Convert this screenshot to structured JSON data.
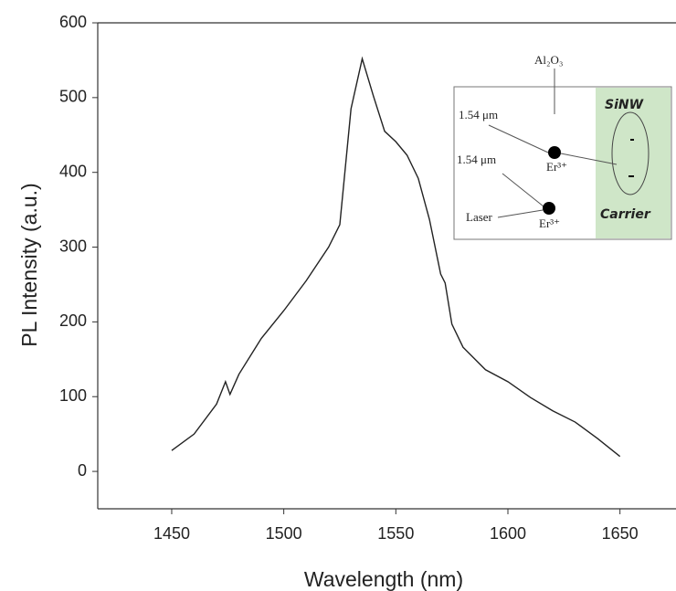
{
  "chart_data": {
    "type": "line",
    "x_label": "Wavelength (nm)",
    "y_label": "PL Intensity (a.u.)",
    "x": [
      1450,
      1460,
      1470,
      1474,
      1476,
      1480,
      1490,
      1500,
      1510,
      1520,
      1525,
      1530,
      1535,
      1540,
      1545,
      1550,
      1555,
      1560,
      1565,
      1570,
      1572,
      1575,
      1580,
      1590,
      1600,
      1610,
      1620,
      1630,
      1640,
      1650
    ],
    "series": [
      {
        "color": "#222222",
        "values": [
          28,
          50,
          90,
          120,
          103,
          130,
          178,
          215,
          255,
          300,
          330,
          485,
          552,
          502,
          455,
          441,
          423,
          392,
          337,
          264,
          252,
          197,
          166,
          136,
          120,
          99,
          81,
          66,
          44,
          20
        ]
      }
    ],
    "xlim": [
      1417,
      1675
    ],
    "xticks": [
      1450,
      1500,
      1550,
      1600,
      1650
    ],
    "ylim": [
      -50,
      600
    ],
    "yticks": [
      0,
      100,
      200,
      300,
      400,
      500,
      600
    ],
    "annotations": [
      "Al₂O₃",
      "1.54 μm",
      "1.54 μm",
      "Laser",
      "Er³⁺",
      "Er³⁺",
      "SiNW",
      "Carrier"
    ]
  }
}
